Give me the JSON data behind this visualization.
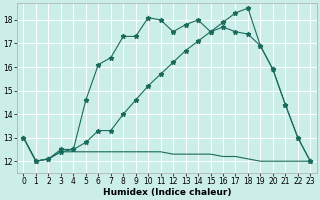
{
  "xlabel": "Humidex (Indice chaleur)",
  "bg_color": "#cceee8",
  "line_color": "#1a6b5e",
  "grid_color": "#ffffff",
  "xlim": [
    -0.5,
    23.5
  ],
  "ylim": [
    11.5,
    18.7
  ],
  "yticks": [
    12,
    13,
    14,
    15,
    16,
    17,
    18
  ],
  "xticks": [
    0,
    1,
    2,
    3,
    4,
    5,
    6,
    7,
    8,
    9,
    10,
    11,
    12,
    13,
    14,
    15,
    16,
    17,
    18,
    19,
    20,
    21,
    22,
    23
  ],
  "line1_x": [
    0,
    1,
    2,
    3,
    4,
    5,
    6,
    7,
    8,
    9,
    10,
    11,
    12,
    13,
    14,
    15,
    16,
    17,
    18,
    19,
    20,
    21,
    22,
    23
  ],
  "line1_y": [
    13.0,
    12.0,
    12.1,
    12.4,
    12.5,
    14.6,
    16.1,
    16.4,
    17.3,
    17.3,
    18.1,
    18.0,
    17.5,
    17.8,
    18.0,
    17.5,
    17.7,
    17.5,
    17.4,
    16.9,
    15.9,
    14.4,
    13.0,
    12.0
  ],
  "line2_x": [
    0,
    1,
    2,
    3,
    4,
    5,
    6,
    7,
    8,
    9,
    10,
    11,
    12,
    13,
    14,
    15,
    16,
    17,
    18,
    19,
    20,
    21,
    22,
    23
  ],
  "line2_y": [
    13.0,
    12.0,
    12.1,
    12.5,
    12.5,
    12.8,
    13.3,
    13.3,
    14.0,
    14.6,
    15.2,
    15.7,
    16.2,
    16.7,
    17.1,
    17.5,
    17.9,
    18.3,
    18.5,
    16.9,
    15.9,
    14.4,
    13.0,
    12.0
  ],
  "line3_x": [
    0,
    1,
    2,
    3,
    4,
    5,
    6,
    7,
    8,
    9,
    10,
    11,
    12,
    13,
    14,
    15,
    16,
    17,
    18,
    19,
    20,
    21,
    22,
    23
  ],
  "line3_y": [
    13.0,
    12.0,
    12.1,
    12.4,
    12.4,
    12.4,
    12.4,
    12.4,
    12.4,
    12.4,
    12.4,
    12.4,
    12.3,
    12.3,
    12.3,
    12.3,
    12.2,
    12.2,
    12.1,
    12.0,
    12.0,
    12.0,
    12.0,
    12.0
  ]
}
